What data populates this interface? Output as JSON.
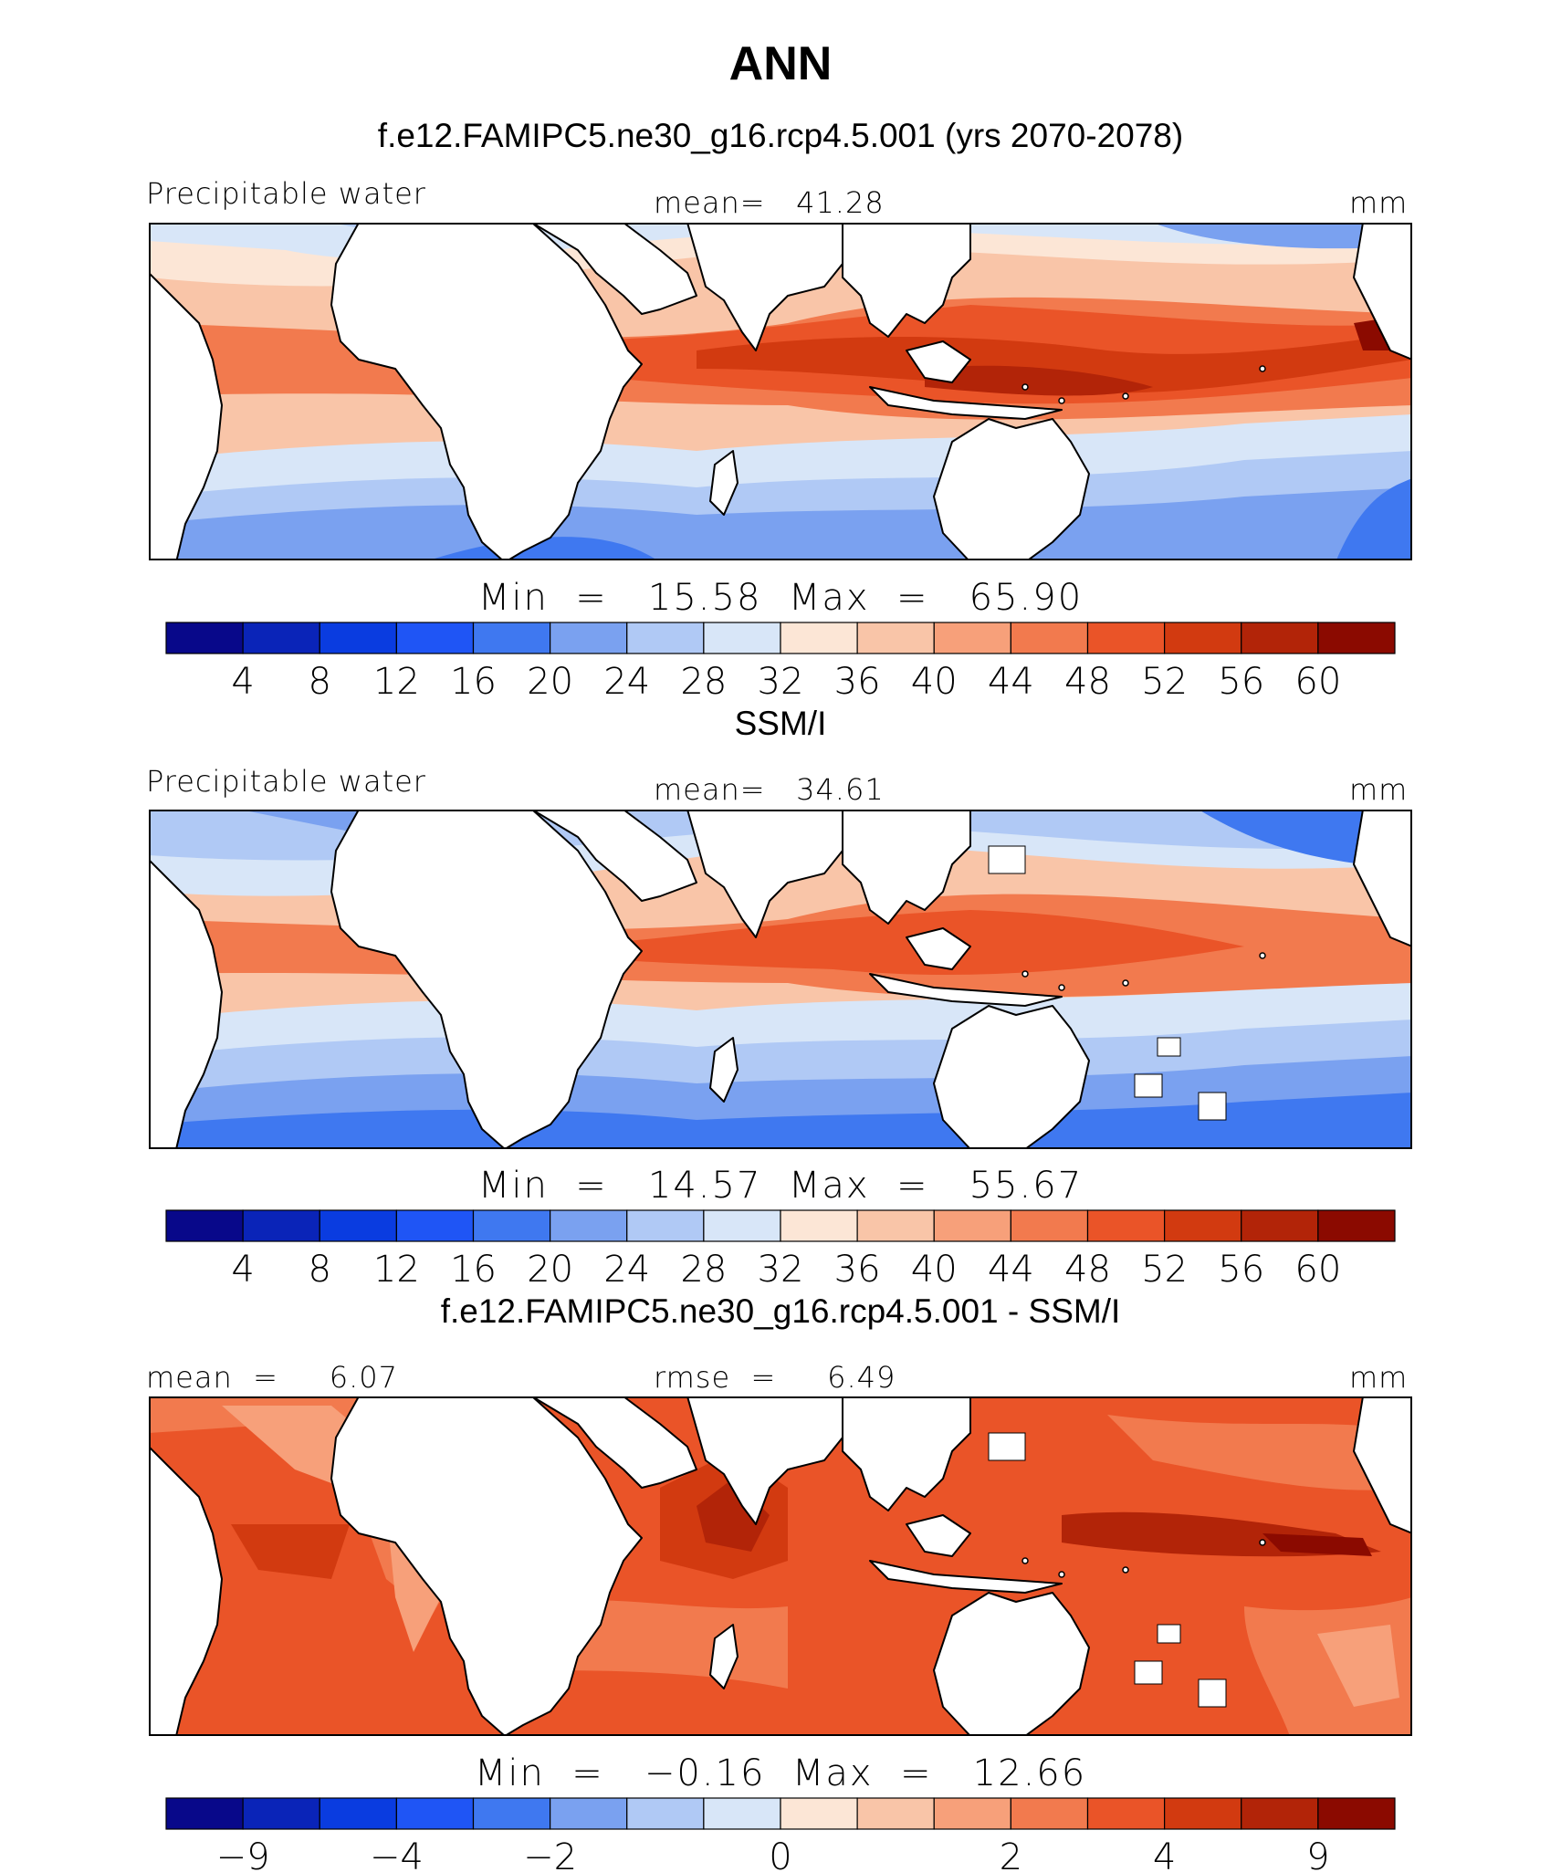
{
  "figure": {
    "title": "ANN"
  },
  "chart_data": [
    {
      "type": "heatmap",
      "title": "f.e12.FAMIPC5.ne30_g16.rcp4.5.001 (yrs 2070-2078)",
      "left_label": "Precipitable water",
      "center_label": "mean=   41.28",
      "units": "mm",
      "mean": 41.28,
      "min_max_text": "Min  =   15.58  Max  =   65.90",
      "min": 15.58,
      "max": 65.9,
      "colorbar_ticks": [
        "4",
        "8",
        "12",
        "16",
        "20",
        "24",
        "28",
        "32",
        "36",
        "40",
        "44",
        "48",
        "52",
        "56",
        "60"
      ]
    },
    {
      "type": "heatmap",
      "title": "SSM/I",
      "left_label": "Precipitable water",
      "center_label": "mean=   34.61",
      "units": "mm",
      "mean": 34.61,
      "min_max_text": "Min  =   14.57  Max  =   55.67",
      "min": 14.57,
      "max": 55.67,
      "colorbar_ticks": [
        "4",
        "8",
        "12",
        "16",
        "20",
        "24",
        "28",
        "32",
        "36",
        "40",
        "44",
        "48",
        "52",
        "56",
        "60"
      ]
    },
    {
      "type": "heatmap",
      "title": "f.e12.FAMIPC5.ne30_g16.rcp4.5.001 - SSM/I",
      "left_label": "mean  =     6.07",
      "center_label": "rmse  =     6.49",
      "units": "mm",
      "mean": 6.07,
      "rmse": 6.49,
      "min_max_text": "Min  =   −0.16  Max  =   12.66",
      "min": -0.16,
      "max": 12.66,
      "colorbar_ticks": [
        "−9",
        "−4",
        "−2",
        "0",
        "2",
        "4",
        "9"
      ]
    }
  ],
  "colors": {
    "palette": [
      "#08088a",
      "#0a24b8",
      "#0a3ce0",
      "#1f55f5",
      "#3f78f0",
      "#7aa1f0",
      "#b0c9f5",
      "#d8e6f8",
      "#fce6d6",
      "#f9c5a8",
      "#f7a07a",
      "#f27a4e",
      "#ea5428",
      "#d23a10",
      "#b22408",
      "#8b0a00"
    ],
    "land": "#ffffff",
    "coast": "#000000"
  }
}
